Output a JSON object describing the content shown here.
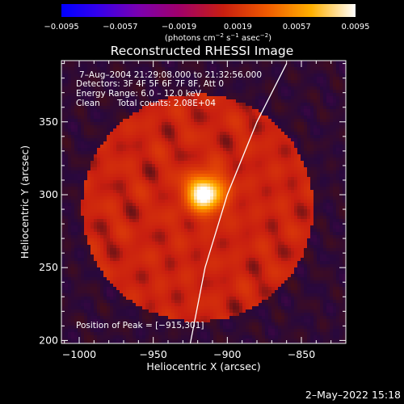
{
  "chart_data": {
    "type": "heatmap",
    "title": "Reconstructed RHESSI Image",
    "xlabel": "Heliocentric X (arcsec)",
    "ylabel": "Heliocentric Y (arcsec)",
    "xlim": [
      -1012,
      -820
    ],
    "ylim": [
      198,
      392
    ],
    "xticks": [
      {
        "value": -1000,
        "label": "−1000"
      },
      {
        "value": -950,
        "label": "−950"
      },
      {
        "value": -900,
        "label": "−900"
      },
      {
        "value": -850,
        "label": "−850"
      }
    ],
    "yticks": [
      {
        "value": 200,
        "label": "200"
      },
      {
        "value": 250,
        "label": "250"
      },
      {
        "value": 300,
        "label": "300"
      },
      {
        "value": 350,
        "label": "350"
      }
    ],
    "colorbar": {
      "range": [
        -0.0095,
        0.0095
      ],
      "ticks": [
        "−0.0095",
        "−0.0057",
        "−0.0019",
        "0.0019",
        "0.0057",
        "0.0095"
      ],
      "units_prefix": "(photons cm",
      "units_exp1": "−2",
      "units_mid": " s",
      "units_exp2": "−1",
      "units_mid2": " asec",
      "units_exp3": "−2",
      "units_suffix": ")"
    },
    "annotations": {
      "time_range": "7–Aug–2004 21:29:08.000 to 21:32:56.000",
      "detectors": "Detectors: 3F 4F 5F 6F 7F 8F, Att 0",
      "energy": "Energy Range: 6.0 – 12.0 keV",
      "clean_label": "Clean",
      "total_counts": "Total counts: 2.08E+04",
      "peak": "Position of Peak = [−915,301]"
    },
    "peak_source": {
      "x": -915,
      "y": 301,
      "value": 0.0095
    },
    "ring": {
      "center_x": -920,
      "center_y": 291,
      "radius": 78,
      "level": 0.0022
    },
    "limb_curve": [
      {
        "x": -925,
        "y": 198
      },
      {
        "x": -915,
        "y": 250
      },
      {
        "x": -900,
        "y": 300
      },
      {
        "x": -880,
        "y": 350
      },
      {
        "x": -860,
        "y": 390
      }
    ]
  },
  "footer": {
    "date": "2–May–2022 15:18"
  }
}
